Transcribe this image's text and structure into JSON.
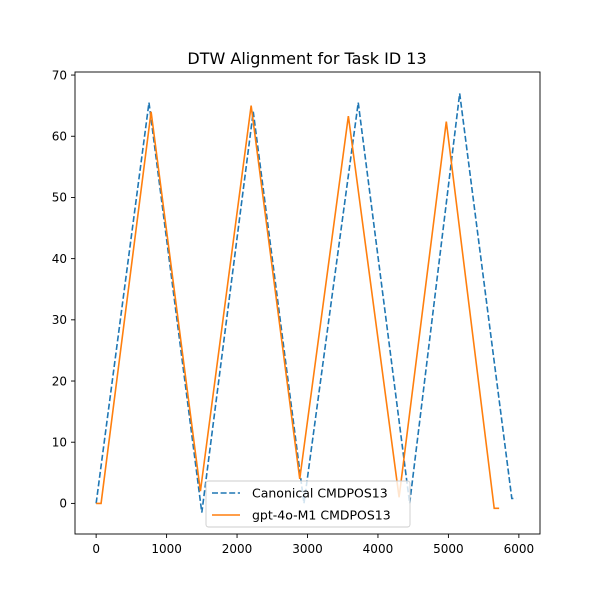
{
  "chart_data": {
    "type": "line",
    "title": "DTW Alignment for Task ID 13",
    "xlabel": "",
    "ylabel": "",
    "xlim": [
      -300,
      6300
    ],
    "ylim": [
      -5,
      70.5
    ],
    "xticks": [
      0,
      1000,
      2000,
      3000,
      4000,
      5000,
      6000
    ],
    "yticks": [
      0,
      10,
      20,
      30,
      40,
      50,
      60,
      70
    ],
    "grid": false,
    "legend_position": "bottom-center",
    "series": [
      {
        "name": "Canonical CMDPOS13",
        "color": "#1f77b4",
        "style": "dashed",
        "points": [
          [
            0,
            0
          ],
          [
            750,
            65.5
          ],
          [
            1500,
            -1.5
          ],
          [
            2230,
            64
          ],
          [
            2950,
            0
          ],
          [
            3720,
            65.5
          ],
          [
            4450,
            0
          ],
          [
            5160,
            67
          ],
          [
            5900,
            0.8
          ],
          [
            5960,
            0.8
          ]
        ]
      },
      {
        "name": "gpt-4o-M1 CMDPOS13",
        "color": "#ff7f0e",
        "style": "solid",
        "points": [
          [
            0,
            0
          ],
          [
            70,
            0
          ],
          [
            780,
            64
          ],
          [
            1480,
            2
          ],
          [
            2200,
            65
          ],
          [
            2890,
            4
          ],
          [
            3580,
            63.3
          ],
          [
            4300,
            1
          ],
          [
            4970,
            62.4
          ],
          [
            5650,
            -0.8
          ],
          [
            5720,
            -0.8
          ]
        ]
      }
    ]
  }
}
